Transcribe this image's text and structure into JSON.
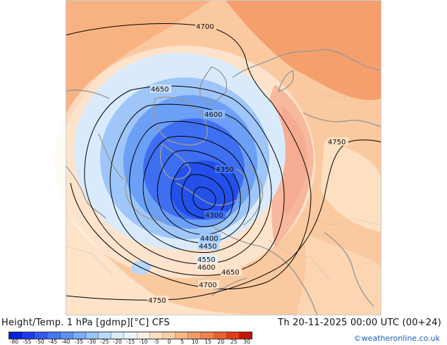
{
  "title": "Height/Temp. 1 hPa [gdmp][°C] CFS",
  "valid_time": "Th 20-11-2025 00:00 UTC (00+24)",
  "credit": "©weatheronline.co.uk",
  "colorbar": {
    "labels": [
      "-80",
      "-55",
      "-50",
      "-45",
      "-40",
      "-35",
      "-30",
      "-25",
      "-20",
      "-15",
      "-10",
      "-5",
      "0",
      "5",
      "10",
      "15",
      "20",
      "25",
      "30"
    ],
    "colors": [
      "#0a1fd8",
      "#1a3af0",
      "#2f58f3",
      "#4478f5",
      "#5b92f6",
      "#78acf7",
      "#97c4f8",
      "#b8daf9",
      "#d7ebfb",
      "#eef6fd",
      "#fdf0de",
      "#fde0c2",
      "#fbcda3",
      "#f8b685",
      "#f59c66",
      "#f2804a",
      "#ee5f2e",
      "#e53a18",
      "#c41508"
    ]
  },
  "contours": [
    {
      "label": "4700"
    },
    {
      "label": "4650"
    },
    {
      "label": "4600"
    },
    {
      "label": "4750"
    },
    {
      "label": "4350"
    },
    {
      "label": "4300"
    },
    {
      "label": "4400"
    },
    {
      "label": "4450"
    },
    {
      "label": "4550"
    },
    {
      "label": "4600"
    },
    {
      "label": "4650"
    },
    {
      "label": "4700"
    },
    {
      "label": "4750"
    }
  ],
  "colors": {
    "warm": "#f7a06b",
    "cold_core": "#2350e8",
    "coast": "#9a9a9a",
    "contour": "#000000"
  }
}
